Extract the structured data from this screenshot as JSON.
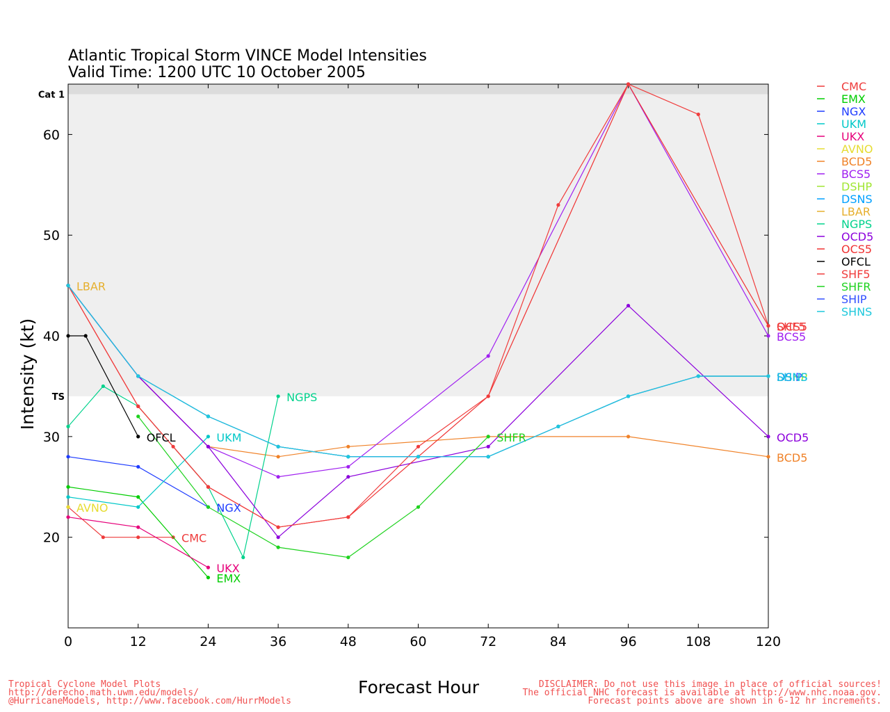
{
  "chart_data": {
    "type": "line",
    "title": "Atlantic Tropical Storm VINCE Model Intensities",
    "subtitle": "Valid Time: 1200 UTC 10 October 2005",
    "xlabel": "Forecast Hour",
    "ylabel": "Intensity (kt)",
    "xlim": [
      0,
      120
    ],
    "ylim": [
      11,
      65
    ],
    "x_ticks": [
      0,
      12,
      24,
      36,
      48,
      60,
      72,
      84,
      96,
      108,
      120
    ],
    "y_ticks": [
      20,
      30,
      40,
      50,
      60
    ],
    "bands": [
      {
        "label": "",
        "y0": 11,
        "y1": 34,
        "color": "#ffffff"
      },
      {
        "label": "TS",
        "y0": 34,
        "y1": 64,
        "color": "#efefef"
      },
      {
        "label": "Cat 1",
        "y0": 64,
        "y1": 65,
        "color": "#dcdcdc"
      }
    ],
    "legend_position": "right",
    "series": [
      {
        "name": "CMC",
        "color": "#ee3b3b",
        "x": [
          0,
          6,
          12,
          18
        ],
        "y": [
          23,
          20,
          20,
          20
        ],
        "end_label": "CMC"
      },
      {
        "name": "EMX",
        "color": "#00cd00",
        "x": [
          0,
          12,
          24
        ],
        "y": [
          25,
          24,
          16
        ],
        "end_label": "EMX"
      },
      {
        "name": "NGX",
        "color": "#1e3cff",
        "x": [
          0,
          12,
          24
        ],
        "y": [
          28,
          27,
          23
        ],
        "end_label": "NGX"
      },
      {
        "name": "UKM",
        "color": "#00c8c8",
        "x": [
          0,
          12,
          24
        ],
        "y": [
          24,
          23,
          30
        ],
        "end_label": "UKM"
      },
      {
        "name": "UKX",
        "color": "#e6007a",
        "x": [
          0,
          12,
          24
        ],
        "y": [
          22,
          21,
          17
        ],
        "end_label": "UKX"
      },
      {
        "name": "AVNO",
        "color": "#e6dc32",
        "x": [
          0
        ],
        "y": [
          23
        ],
        "end_label": "AVNO"
      },
      {
        "name": "BCD5",
        "color": "#f08228",
        "x": [
          0,
          12,
          24,
          36,
          48,
          72,
          96,
          120
        ],
        "y": [
          45,
          36,
          29,
          28,
          29,
          30,
          30,
          28
        ],
        "end_label": "BCD5"
      },
      {
        "name": "BCS5",
        "color": "#a020f0",
        "x": [
          0,
          12,
          24,
          36,
          48,
          72,
          96,
          120
        ],
        "y": [
          45,
          36,
          29,
          26,
          27,
          38,
          65,
          40
        ],
        "end_label": "BCS5"
      },
      {
        "name": "DSHP",
        "color": "#a0e632",
        "x": [
          0,
          12,
          24,
          36,
          48,
          60,
          72,
          84,
          96,
          108,
          120
        ],
        "y": [
          45,
          36,
          32,
          29,
          28,
          28,
          28,
          31,
          34,
          36,
          36
        ],
        "end_label": "DSHP"
      },
      {
        "name": "DSNS",
        "color": "#00a0ff",
        "x": [
          0,
          12,
          24,
          36,
          48,
          60,
          72,
          84,
          96,
          108,
          120
        ],
        "y": [
          45,
          36,
          32,
          29,
          28,
          28,
          28,
          31,
          34,
          36,
          36
        ],
        "end_label": "DSNS"
      },
      {
        "name": "LBAR",
        "color": "#e6af2d",
        "x": [
          0
        ],
        "y": [
          45
        ],
        "end_label": "LBAR"
      },
      {
        "name": "NGPS",
        "color": "#00d28c",
        "x": [
          0,
          6,
          12,
          24,
          30,
          36
        ],
        "y": [
          31,
          35,
          33,
          25,
          18,
          34
        ],
        "end_label": "NGPS"
      },
      {
        "name": "OCD5",
        "color": "#8c00dc",
        "x": [
          0,
          12,
          24,
          36,
          48,
          72,
          96,
          120
        ],
        "y": [
          45,
          36,
          29,
          20,
          26,
          29,
          43,
          30
        ],
        "end_label": "OCD5"
      },
      {
        "name": "OCS5",
        "color": "#f03232",
        "x": [
          0,
          12,
          24,
          36,
          48,
          72,
          96,
          120
        ],
        "y": [
          45,
          33,
          25,
          21,
          22,
          34,
          65,
          41
        ],
        "end_label": "OCS5"
      },
      {
        "name": "OFCL",
        "color": "#000000",
        "x": [
          0,
          3,
          12
        ],
        "y": [
          40,
          40,
          30
        ],
        "end_label": "OFCL"
      },
      {
        "name": "SHF5",
        "color": "#f03c3c",
        "x": [
          0,
          12,
          18,
          24,
          36,
          48,
          60,
          72,
          84,
          96,
          108,
          120
        ],
        "y": [
          45,
          33,
          29,
          25,
          21,
          22,
          29,
          34,
          53,
          65,
          62,
          41
        ],
        "end_label": "SHF5"
      },
      {
        "name": "SHFR",
        "color": "#1ed21e",
        "x": [
          12,
          24,
          36,
          48,
          60,
          72
        ],
        "y": [
          32,
          23,
          19,
          18,
          23,
          30
        ],
        "end_label": "SHFR"
      },
      {
        "name": "SHIP",
        "color": "#3250ff",
        "x": [
          0,
          12,
          24,
          36,
          48,
          60,
          72,
          84,
          96,
          108,
          120
        ],
        "y": [
          45,
          36,
          32,
          29,
          28,
          28,
          28,
          31,
          34,
          36,
          36
        ],
        "end_label": "SHIP"
      },
      {
        "name": "SHNS",
        "color": "#1ec8dc",
        "x": [
          0,
          12,
          24,
          36,
          48,
          60,
          72,
          84,
          96,
          108,
          120
        ],
        "y": [
          45,
          36,
          32,
          29,
          28,
          28,
          28,
          31,
          34,
          36,
          36
        ],
        "end_label": "SHNS"
      }
    ]
  },
  "footer": {
    "left_lines": [
      "Tropical Cyclone Model Plots",
      "http://derecho.math.uwm.edu/models/",
      "@HurricaneModels, http://www.facebook.com/HurrModels"
    ],
    "right_lines": [
      "DISCLAIMER: Do not use this image in place of official sources!",
      "The official NHC forecast is available at http://www.nhc.noaa.gov.",
      "Forecast points above are shown in 6-12 hr increments."
    ],
    "color": "#f05050"
  }
}
